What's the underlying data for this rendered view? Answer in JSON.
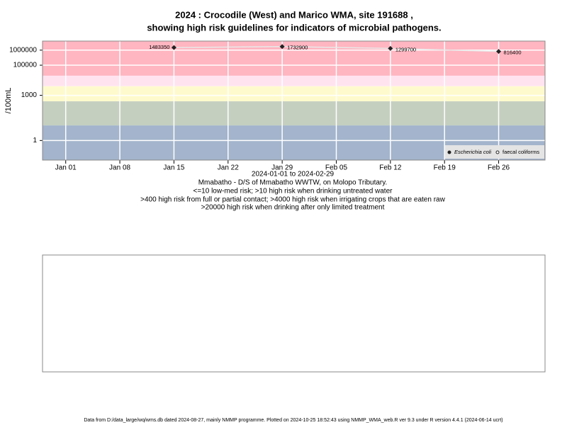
{
  "chart_data": {
    "type": "line",
    "title": "2024 : Crocodile (West) and Marico WMA, site 191688 ,",
    "subtitle": "showing high risk guidelines for indicators of microbial pathogens.",
    "y_label": "/100mL",
    "x_caption": "2024-01-01 to 2024-02-29",
    "site": "Mmabatho - D/S of Mmabatho WWTW, on Molopo Tributary.",
    "notes": [
      "<=10 low-med risk; >10 high risk when drinking untreated water",
      ">400 high risk from full or partial contact; >4000 high risk when irrigating crops that are eaten raw",
      ">20000 high risk when drinking after only limited treatment"
    ],
    "x": [
      "2024-01-15",
      "2024-01-29",
      "2024-02-12",
      "2024-02-26"
    ],
    "series": [
      {
        "name": "Escherichia coli",
        "color": "#222222",
        "values": [
          1483350,
          1732900,
          1299700,
          816400
        ]
      },
      {
        "name": "faecal coliforms",
        "color": "#dddddd",
        "values": [
          null,
          null,
          null,
          null
        ]
      }
    ],
    "log_scale": true,
    "ylim": [
      0.05,
      4000000
    ],
    "yticks": [
      1,
      1000,
      100000,
      1000000
    ],
    "xlim": [
      "2023-12-29",
      "2024-03-03"
    ],
    "xticks": [
      {
        "value": "2024-01-01",
        "label": "Jan 01"
      },
      {
        "value": "2024-01-08",
        "label": "Jan 08"
      },
      {
        "value": "2024-01-15",
        "label": "Jan 15"
      },
      {
        "value": "2024-01-22",
        "label": "Jan 22"
      },
      {
        "value": "2024-01-29",
        "label": "Jan 29"
      },
      {
        "value": "2024-02-05",
        "label": "Feb 05"
      },
      {
        "value": "2024-02-12",
        "label": "Feb 12"
      },
      {
        "value": "2024-02-19",
        "label": "Feb 19"
      },
      {
        "value": "2024-02-26",
        "label": "Feb 26"
      }
    ],
    "bands": [
      {
        "from": 20000,
        "to": 4000000,
        "color": "#ffb6c1"
      },
      {
        "from": 4000,
        "to": 20000,
        "color": "#ffe4f0"
      },
      {
        "from": 400,
        "to": 4000,
        "color": "#fffacd"
      },
      {
        "from": 10,
        "to": 400,
        "color": "#c5cfc0"
      },
      {
        "from": 0.05,
        "to": 10,
        "color": "#a3b4cc"
      }
    ],
    "grid": true,
    "legend": "bottom-right"
  },
  "footer": "Data from D:/data_large/wq/wms.db dated 2024-08-27, mainly NMMP programme. Plotted on 2024-10-25 18:52:43 using NMMP_WMA_web.R ver 9.3 under R version 4.4.1 (2024-06-14 ucrt)"
}
